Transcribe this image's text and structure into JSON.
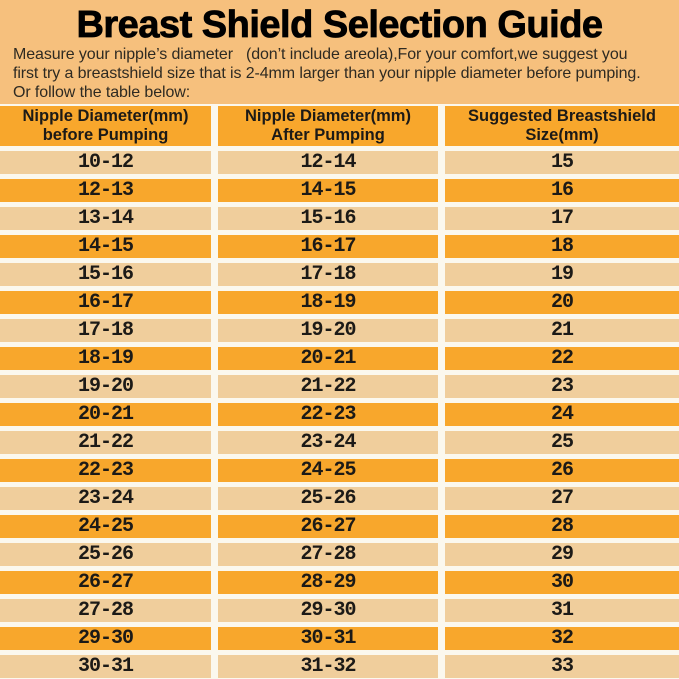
{
  "title": "Breast Shield Selection Guide",
  "description": {
    "lines": [
      "Measure your nipple’s diameter   (don’t include areola),For your comfort,we suggest you",
      "first try a breastshield size that is 2-4mm larger than your nipple diameter before pumping.",
      "Or follow the table below:"
    ]
  },
  "table": {
    "columns": [
      {
        "label": "Nipple Diameter(mm)\nbefore Pumping"
      },
      {
        "label": "Nipple Diameter(mm)\nAfter Pumping"
      },
      {
        "label": "Suggested Breastshield\nSize(mm)"
      }
    ],
    "rows": [
      {
        "before": "10-12",
        "after": "12-14",
        "size": "15"
      },
      {
        "before": "12-13",
        "after": "14-15",
        "size": "16"
      },
      {
        "before": "13-14",
        "after": "15-16",
        "size": "17"
      },
      {
        "before": "14-15",
        "after": "16-17",
        "size": "18"
      },
      {
        "before": "15-16",
        "after": "17-18",
        "size": "19"
      },
      {
        "before": "16-17",
        "after": "18-19",
        "size": "20"
      },
      {
        "before": "17-18",
        "after": "19-20",
        "size": "21"
      },
      {
        "before": "18-19",
        "after": "20-21",
        "size": "22"
      },
      {
        "before": "19-20",
        "after": "21-22",
        "size": "23"
      },
      {
        "before": "20-21",
        "after": "22-23",
        "size": "24"
      },
      {
        "before": "21-22",
        "after": "23-24",
        "size": "25"
      },
      {
        "before": "22-23",
        "after": "24-25",
        "size": "26"
      },
      {
        "before": "23-24",
        "after": "25-26",
        "size": "27"
      },
      {
        "before": "24-25",
        "after": "26-27",
        "size": "28"
      },
      {
        "before": "25-26",
        "after": "27-28",
        "size": "29"
      },
      {
        "before": "26-27",
        "after": "28-29",
        "size": "30"
      },
      {
        "before": "27-28",
        "after": "29-30",
        "size": "31"
      },
      {
        "before": "29-30",
        "after": "30-31",
        "size": "32"
      },
      {
        "before": "30-31",
        "after": "31-32",
        "size": "33"
      }
    ]
  },
  "colors": {
    "page_bg": "#F6C07D",
    "header_bg": "#F8A72C",
    "row_light_bg": "#F0CE9C",
    "row_dark_bg": "#F8A72C",
    "gap_color": "#FBF8EE",
    "text_dark": "#1C1A17",
    "text_body": "#2E2A22"
  }
}
